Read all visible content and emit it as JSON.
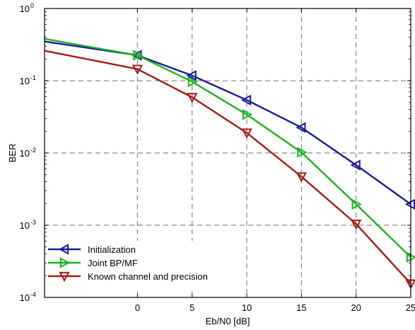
{
  "chart_data": {
    "type": "line",
    "xlabel": "Eb/N0 [dB]",
    "ylabel": "BER",
    "xlim": [
      -8.5,
      25
    ],
    "ylim": [
      0.0001,
      1
    ],
    "yscale": "log",
    "grid": true,
    "legend_position": "bottom-left",
    "x_ticks": [
      0,
      5,
      10,
      15,
      20,
      25
    ],
    "y_ticks": [
      {
        "value": 1,
        "base": "10",
        "exp": "0"
      },
      {
        "value": 0.1,
        "base": "10",
        "exp": "-1"
      },
      {
        "value": 0.01,
        "base": "10",
        "exp": "-2"
      },
      {
        "value": 0.001,
        "base": "10",
        "exp": "-3"
      },
      {
        "value": 0.0001,
        "base": "10",
        "exp": "-4"
      }
    ],
    "series": [
      {
        "name": "Initialization",
        "color": "#1a1a9c",
        "marker": "triangle-left",
        "x": [
          -8.5,
          0,
          5,
          10,
          15,
          20,
          25
        ],
        "y": [
          0.35,
          0.225,
          0.118,
          0.054,
          0.0225,
          0.0068,
          0.00195
        ]
      },
      {
        "name": "Joint BP/MF",
        "color": "#1fb41f",
        "marker": "triangle-right",
        "x": [
          -8.5,
          0,
          5,
          10,
          15,
          20,
          25
        ],
        "y": [
          0.38,
          0.225,
          0.097,
          0.034,
          0.0102,
          0.00195,
          0.00036
        ]
      },
      {
        "name": "Known channel and precision",
        "color": "#aa1a1a",
        "marker": "triangle-down",
        "x": [
          -8.5,
          0,
          5,
          10,
          15,
          20,
          25
        ],
        "y": [
          0.26,
          0.145,
          0.059,
          0.019,
          0.0047,
          0.00104,
          0.000155
        ]
      }
    ]
  }
}
